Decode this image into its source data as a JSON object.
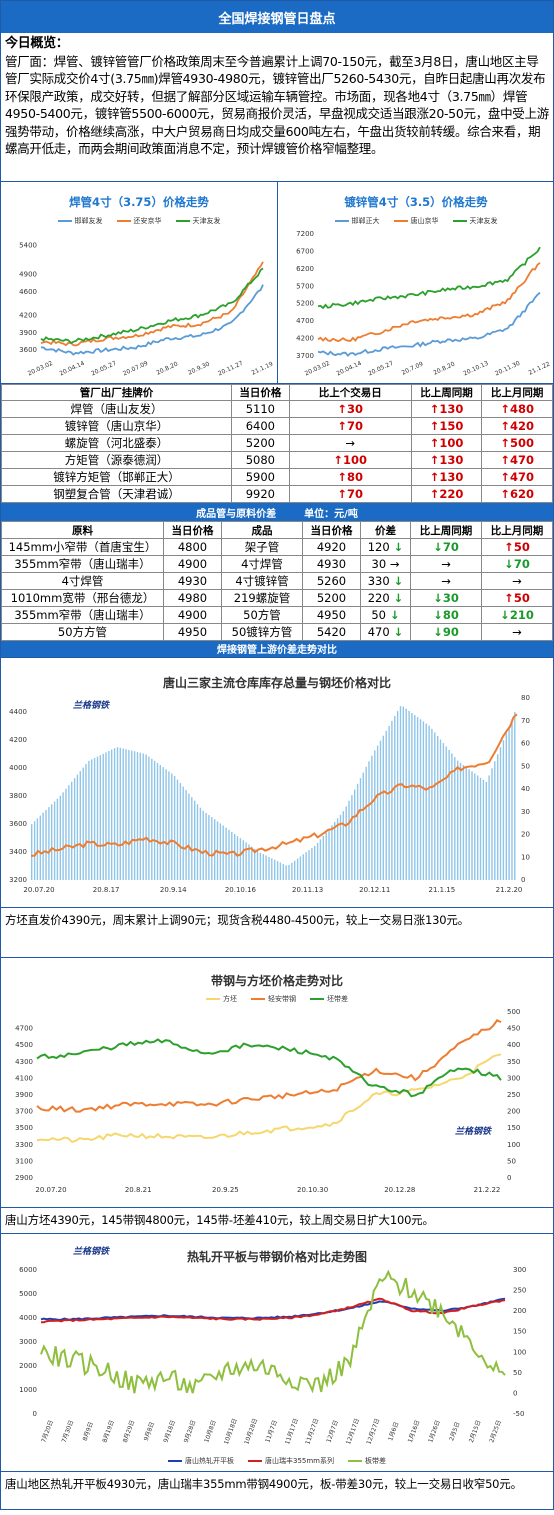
{
  "page_title": "全国焊接钢管日盘点",
  "intro": {
    "heading": "今日概览：",
    "body": "管厂面：焊管、镀锌管管厂价格政策周末至今普遍累计上调70-150元，截至3月8日，唐山地区主导管厂实际成交价4寸(3.75㎜)焊管4930-4980元，镀锌管出厂5260-5430元，自昨日起唐山再次发布环保限产政策，成交好转，但据了解部分区域运输车辆管控。市场面，现各地4寸（3.75㎜）焊管4950-5400元，镀锌管5500-6000元，贸易商报价灵活，早盘视成交适当跟涨20-50元，盘中受上游强势带动，价格继续高涨，中大户贸易商日均成交量600吨左右，午盘出货较前转缓。综合来看，期螺高开低走，而两会期间政策面消息不定，预计焊镀管价格窄幅整理。"
  },
  "chart_left": {
    "title": "焊管4寸（3.75）价格走势",
    "legend": [
      "邯郸友发",
      "还安京华",
      "天津友发"
    ],
    "colors": [
      "#5b9bd5",
      "#ed7d31",
      "#2ca02c"
    ]
  },
  "chart_right": {
    "title": "镀锌管4寸（3.5）价格走势",
    "legend": [
      "邯郸正大",
      "唐山京华",
      "天津友发"
    ],
    "colors": [
      "#5b9bd5",
      "#ed7d31",
      "#2ca02c"
    ]
  },
  "chart_data": [
    {
      "type": "line",
      "title": "焊管4寸（3.75）价格走势",
      "x": [
        "20.03.02",
        "20.04.14",
        "20.05.27",
        "20.07.09",
        "20.8.20",
        "20.9.30",
        "20.11.27",
        "21.1.19"
      ],
      "ylim": [
        3500,
        5600
      ],
      "yticks": [
        3600,
        3900,
        4200,
        4600,
        4900,
        5400
      ],
      "series": [
        {
          "name": "邯郸友发",
          "values": [
            3650,
            3550,
            3600,
            3650,
            3800,
            3850,
            4050,
            4700
          ]
        },
        {
          "name": "还安京华",
          "values": [
            3750,
            3700,
            3800,
            3850,
            4000,
            4050,
            4250,
            5100
          ]
        },
        {
          "name": "天津友发",
          "values": [
            3800,
            3750,
            3850,
            3950,
            4100,
            4200,
            4400,
            5000
          ]
        }
      ]
    },
    {
      "type": "line",
      "title": "镀锌管4寸（3.5）价格走势",
      "x": [
        "20.03.02",
        "20.04.14",
        "20.05.27",
        "20.7.09",
        "20.8.20",
        "20.10.13",
        "20.11.30",
        "21.1.22"
      ],
      "ylim": [
        3700,
        7200
      ],
      "yticks": [
        3700,
        4200,
        4700,
        5200,
        5700,
        6200,
        6700,
        7200
      ],
      "series": [
        {
          "name": "邯郸正大",
          "values": [
            3800,
            3750,
            3900,
            4000,
            4150,
            4200,
            4500,
            5500
          ]
        },
        {
          "name": "唐山京华",
          "values": [
            4200,
            4150,
            4400,
            4700,
            4800,
            4900,
            5300,
            6400
          ]
        },
        {
          "name": "天津友发",
          "values": [
            5100,
            5200,
            5350,
            5450,
            5600,
            5700,
            5900,
            6800
          ]
        }
      ]
    },
    {
      "type": "bar",
      "title": "唐山三家主流仓库库存总量与钢坯价格对比",
      "x": [
        "20.07.20",
        "20.8.17",
        "20.9.14",
        "20.10.16",
        "20.11.13",
        "20.12.11",
        "21.1.15",
        "21.2.20"
      ],
      "ylim": [
        3200,
        4500
      ],
      "y2lim": [
        0,
        80
      ]
    },
    {
      "type": "line",
      "title": "带钢与方坯价格走势对比",
      "x": [
        "20.07.20",
        "20.8.21",
        "20.9.25",
        "20.10.30",
        "20.12.28",
        "21.2.22"
      ],
      "ylim": [
        2900,
        4900
      ],
      "legend": [
        "方坯",
        "轻安带钢",
        "坯带差"
      ]
    },
    {
      "type": "line",
      "title": "热轧开平板与带钢价格对比走势图",
      "x": [
        "7月20日",
        "7月30日",
        "8月9日",
        "8月19日",
        "8月29日",
        "9月8日",
        "9月18日",
        "9月28日",
        "10月8日",
        "10月18日",
        "10月28日",
        "11月7日",
        "11月17日",
        "11月27日",
        "12月7日",
        "12月17日",
        "12月27日",
        "1月6日",
        "1月16日",
        "1月26日",
        "2月5日",
        "2月15日",
        "2月25日"
      ],
      "ylim": [
        0,
        6000
      ],
      "legend": [
        "唐山热轧开平板",
        "唐山瑞丰355mm系列",
        "板带差"
      ]
    }
  ],
  "table1": {
    "headers": [
      "管厂出厂挂牌价",
      "当日价格",
      "比上个交易日",
      "比上周同期",
      "比上月同期"
    ],
    "rows": [
      [
        "焊管（唐山友发）",
        "5110",
        "30",
        "130",
        "480"
      ],
      [
        "镀锌管（唐山京华）",
        "6400",
        "70",
        "150",
        "420"
      ],
      [
        "螺旋管（河北盛泰）",
        "5200",
        "→",
        "100",
        "500"
      ],
      [
        "方矩管（源泰德润）",
        "5080",
        "100",
        "130",
        "470"
      ],
      [
        "镀锌方矩管（邯郸正大）",
        "5900",
        "80",
        "130",
        "470"
      ],
      [
        "钢塑复合管（天津君诚）",
        "9920",
        "70",
        "220",
        "620"
      ]
    ]
  },
  "table2": {
    "title": "成品管与原料价差",
    "unit": "单位：元/吨",
    "headers": [
      "原料",
      "当日价格",
      "成品",
      "当日价格",
      "价差",
      "比上周同期",
      "比上月同期"
    ],
    "rows": [
      [
        "145mm小窄带（首唐宝生）",
        "4800",
        "架子管",
        "4920",
        "120",
        "70",
        "50"
      ],
      [
        "355mm窄带（唐山瑞丰）",
        "4900",
        "4寸焊管",
        "4930",
        "30",
        "→",
        "70"
      ],
      [
        "4寸焊管",
        "4930",
        "4寸镀锌管",
        "5260",
        "330",
        "→",
        "→"
      ],
      [
        "1010mm宽带（邢台德龙）",
        "4980",
        "219螺旋管",
        "5200",
        "220",
        "30",
        "50"
      ],
      [
        "355mm窄带（唐山瑞丰）",
        "4900",
        "50方管",
        "4950",
        "50",
        "80",
        "210"
      ],
      [
        "50方方管",
        "4950",
        "50镀锌方管",
        "5420",
        "470",
        "90",
        "→"
      ]
    ]
  },
  "section_bar": "焊接钢管上游价差走势对比",
  "chart3": {
    "title": "唐山三家主流仓库库存总量与钢坯价格对比",
    "caption": "方坯直发价4390元，周末累计上调90元；现货含税4480-4500元，较上一交易日涨130元。"
  },
  "chart4": {
    "title": "带钢与方坯价格走势对比",
    "legend": [
      "方坯",
      "轻安带钢",
      "坯带差"
    ],
    "caption": "唐山方坯4390元，145带钢4800元，145带-坯差410元，较上周交易日扩大100元。"
  },
  "chart5": {
    "title": "热轧开平板与带钢价格对比走势图",
    "legend": [
      "唐山热轧开平板",
      "唐山瑞丰355mm系列",
      "板带差"
    ],
    "caption": "唐山地区热轧开平板4930元，唐山瑞丰355mm带钢4900元，板-带差30元，较上一交易日收窄50元。"
  },
  "logo_text": "兰格钢铁",
  "colors": {
    "brand_blue": "#1b6bc4",
    "up": "#d00000",
    "down": "#1a9a2a"
  }
}
